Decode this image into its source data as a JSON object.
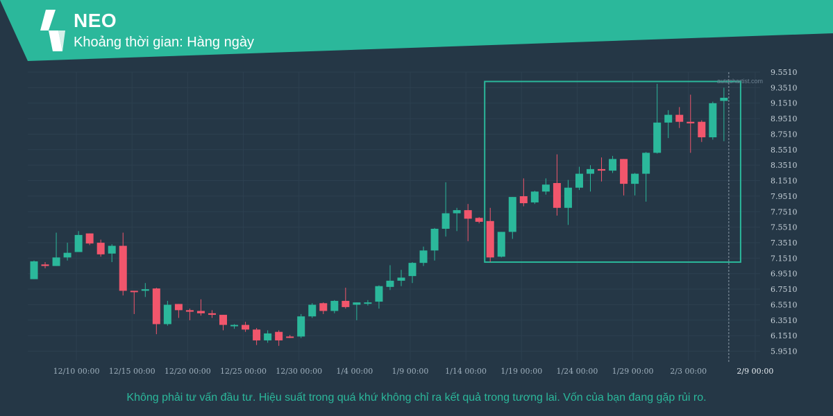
{
  "header": {
    "symbol": "NEO",
    "timeframe_label": "Khoảng thời gian: Hàng ngày",
    "brand_color": "#2bb89b"
  },
  "watermark": "autochartist.com",
  "disclaimer": "Không phải tư vấn đầu tư. Hiệu suất trong quá khứ không chỉ ra kết quả trong tương lai. Vốn của bạn đang gặp rủi ro.",
  "chart_data": {
    "type": "candlestick",
    "title": "NEO",
    "up_color": "#2bb89b",
    "down_color": "#f2566c",
    "ylim": [
      5.85,
      9.62
    ],
    "y_ticks": [
      "5.9510",
      "6.1510",
      "6.3510",
      "6.5510",
      "6.7510",
      "6.9510",
      "7.1510",
      "7.3510",
      "7.5510",
      "7.7510",
      "7.9510",
      "8.1510",
      "8.3510",
      "8.5510",
      "8.7510",
      "8.9510",
      "9.1510",
      "9.3510",
      "9.5510"
    ],
    "x_ticks": [
      {
        "index": 2,
        "label": "12/10 00:00"
      },
      {
        "index": 7,
        "label": "12/15 00:00"
      },
      {
        "index": 12,
        "label": "12/20 00:00"
      },
      {
        "index": 17,
        "label": "12/25 00:00"
      },
      {
        "index": 22,
        "label": "12/30 00:00"
      },
      {
        "index": 27,
        "label": "1/4 00:00"
      },
      {
        "index": 32,
        "label": "1/9 00:00"
      },
      {
        "index": 37,
        "label": "1/14 00:00"
      },
      {
        "index": 42,
        "label": "1/19 00:00"
      },
      {
        "index": 47,
        "label": "1/24 00:00"
      },
      {
        "index": 52,
        "label": "1/29 00:00"
      },
      {
        "index": 57,
        "label": "2/3 00:00"
      },
      {
        "index": 63,
        "label": "2/9 00:00",
        "highlight": true
      }
    ],
    "candles": [
      {
        "o": 6.88,
        "h": 7.12,
        "l": 6.88,
        "c": 7.11
      },
      {
        "o": 7.07,
        "h": 7.1,
        "l": 7.02,
        "c": 7.05
      },
      {
        "o": 7.05,
        "h": 7.48,
        "l": 7.05,
        "c": 7.16
      },
      {
        "o": 7.16,
        "h": 7.35,
        "l": 7.12,
        "c": 7.22
      },
      {
        "o": 7.23,
        "h": 7.5,
        "l": 7.23,
        "c": 7.45
      },
      {
        "o": 7.47,
        "h": 7.47,
        "l": 7.32,
        "c": 7.34
      },
      {
        "o": 7.35,
        "h": 7.39,
        "l": 7.17,
        "c": 7.2
      },
      {
        "o": 7.21,
        "h": 7.33,
        "l": 7.1,
        "c": 7.31
      },
      {
        "o": 7.31,
        "h": 7.48,
        "l": 6.67,
        "c": 6.73
      },
      {
        "o": 6.73,
        "h": 6.73,
        "l": 6.43,
        "c": 6.72
      },
      {
        "o": 6.73,
        "h": 6.83,
        "l": 6.65,
        "c": 6.75
      },
      {
        "o": 6.76,
        "h": 6.77,
        "l": 6.17,
        "c": 6.3
      },
      {
        "o": 6.3,
        "h": 6.6,
        "l": 6.28,
        "c": 6.55
      },
      {
        "o": 6.56,
        "h": 6.56,
        "l": 6.38,
        "c": 6.48
      },
      {
        "o": 6.48,
        "h": 6.5,
        "l": 6.35,
        "c": 6.46
      },
      {
        "o": 6.47,
        "h": 6.62,
        "l": 6.41,
        "c": 6.44
      },
      {
        "o": 6.44,
        "h": 6.48,
        "l": 6.38,
        "c": 6.42
      },
      {
        "o": 6.42,
        "h": 6.42,
        "l": 6.22,
        "c": 6.29
      },
      {
        "o": 6.29,
        "h": 6.3,
        "l": 6.24,
        "c": 6.29
      },
      {
        "o": 6.29,
        "h": 6.33,
        "l": 6.2,
        "c": 6.23
      },
      {
        "o": 6.23,
        "h": 6.25,
        "l": 6.03,
        "c": 6.09
      },
      {
        "o": 6.09,
        "h": 6.22,
        "l": 6.06,
        "c": 6.18
      },
      {
        "o": 6.2,
        "h": 6.22,
        "l": 6.02,
        "c": 6.09
      },
      {
        "o": 6.14,
        "h": 6.16,
        "l": 6.12,
        "c": 6.13
      },
      {
        "o": 6.14,
        "h": 6.43,
        "l": 6.12,
        "c": 6.4
      },
      {
        "o": 6.4,
        "h": 6.57,
        "l": 6.38,
        "c": 6.55
      },
      {
        "o": 6.57,
        "h": 6.58,
        "l": 6.43,
        "c": 6.47
      },
      {
        "o": 6.47,
        "h": 6.61,
        "l": 6.44,
        "c": 6.6
      },
      {
        "o": 6.6,
        "h": 6.77,
        "l": 6.5,
        "c": 6.52
      },
      {
        "o": 6.55,
        "h": 6.58,
        "l": 6.35,
        "c": 6.58
      },
      {
        "o": 6.58,
        "h": 6.61,
        "l": 6.54,
        "c": 6.58
      },
      {
        "o": 6.59,
        "h": 6.8,
        "l": 6.5,
        "c": 6.79
      },
      {
        "o": 6.78,
        "h": 7.06,
        "l": 6.74,
        "c": 6.86
      },
      {
        "o": 6.86,
        "h": 7.0,
        "l": 6.79,
        "c": 6.9
      },
      {
        "o": 6.92,
        "h": 7.1,
        "l": 6.83,
        "c": 7.09
      },
      {
        "o": 7.09,
        "h": 7.3,
        "l": 7.05,
        "c": 7.25
      },
      {
        "o": 7.25,
        "h": 7.54,
        "l": 7.12,
        "c": 7.53
      },
      {
        "o": 7.53,
        "h": 8.13,
        "l": 7.43,
        "c": 7.73
      },
      {
        "o": 7.73,
        "h": 7.8,
        "l": 7.5,
        "c": 7.77
      },
      {
        "o": 7.77,
        "h": 7.85,
        "l": 7.37,
        "c": 7.66
      },
      {
        "o": 7.67,
        "h": 7.68,
        "l": 7.6,
        "c": 7.62
      },
      {
        "o": 7.63,
        "h": 7.8,
        "l": 7.1,
        "c": 7.16
      },
      {
        "o": 7.17,
        "h": 7.49,
        "l": 7.16,
        "c": 7.49
      },
      {
        "o": 7.49,
        "h": 7.94,
        "l": 7.4,
        "c": 7.94
      },
      {
        "o": 7.95,
        "h": 8.18,
        "l": 7.82,
        "c": 7.86
      },
      {
        "o": 7.87,
        "h": 8.02,
        "l": 7.85,
        "c": 8.01
      },
      {
        "o": 8.01,
        "h": 8.18,
        "l": 7.97,
        "c": 8.1
      },
      {
        "o": 8.12,
        "h": 8.49,
        "l": 7.7,
        "c": 7.8
      },
      {
        "o": 7.8,
        "h": 8.16,
        "l": 7.58,
        "c": 8.06
      },
      {
        "o": 8.06,
        "h": 8.33,
        "l": 8.03,
        "c": 8.24
      },
      {
        "o": 8.24,
        "h": 8.35,
        "l": 8.01,
        "c": 8.3
      },
      {
        "o": 8.3,
        "h": 8.45,
        "l": 8.14,
        "c": 8.28
      },
      {
        "o": 8.28,
        "h": 8.47,
        "l": 8.25,
        "c": 8.43
      },
      {
        "o": 8.43,
        "h": 8.43,
        "l": 7.96,
        "c": 8.11
      },
      {
        "o": 8.11,
        "h": 8.25,
        "l": 7.96,
        "c": 8.24
      },
      {
        "o": 8.24,
        "h": 8.52,
        "l": 7.88,
        "c": 8.51
      },
      {
        "o": 8.51,
        "h": 9.4,
        "l": 8.5,
        "c": 8.9
      },
      {
        "o": 8.9,
        "h": 9.06,
        "l": 8.7,
        "c": 9.0
      },
      {
        "o": 9.0,
        "h": 9.1,
        "l": 8.83,
        "c": 8.91
      },
      {
        "o": 8.91,
        "h": 9.26,
        "l": 8.51,
        "c": 8.89
      },
      {
        "o": 8.91,
        "h": 8.93,
        "l": 8.65,
        "c": 8.71
      },
      {
        "o": 8.71,
        "h": 9.17,
        "l": 8.68,
        "c": 9.15
      },
      {
        "o": 9.18,
        "h": 9.35,
        "l": 8.66,
        "c": 9.22
      }
    ],
    "pattern_box": {
      "start_index": 41,
      "end_index": 63,
      "low": 7.1,
      "high": 9.43,
      "color": "#2bb89b"
    },
    "last_candle_marker_index": 62,
    "grid": true
  }
}
